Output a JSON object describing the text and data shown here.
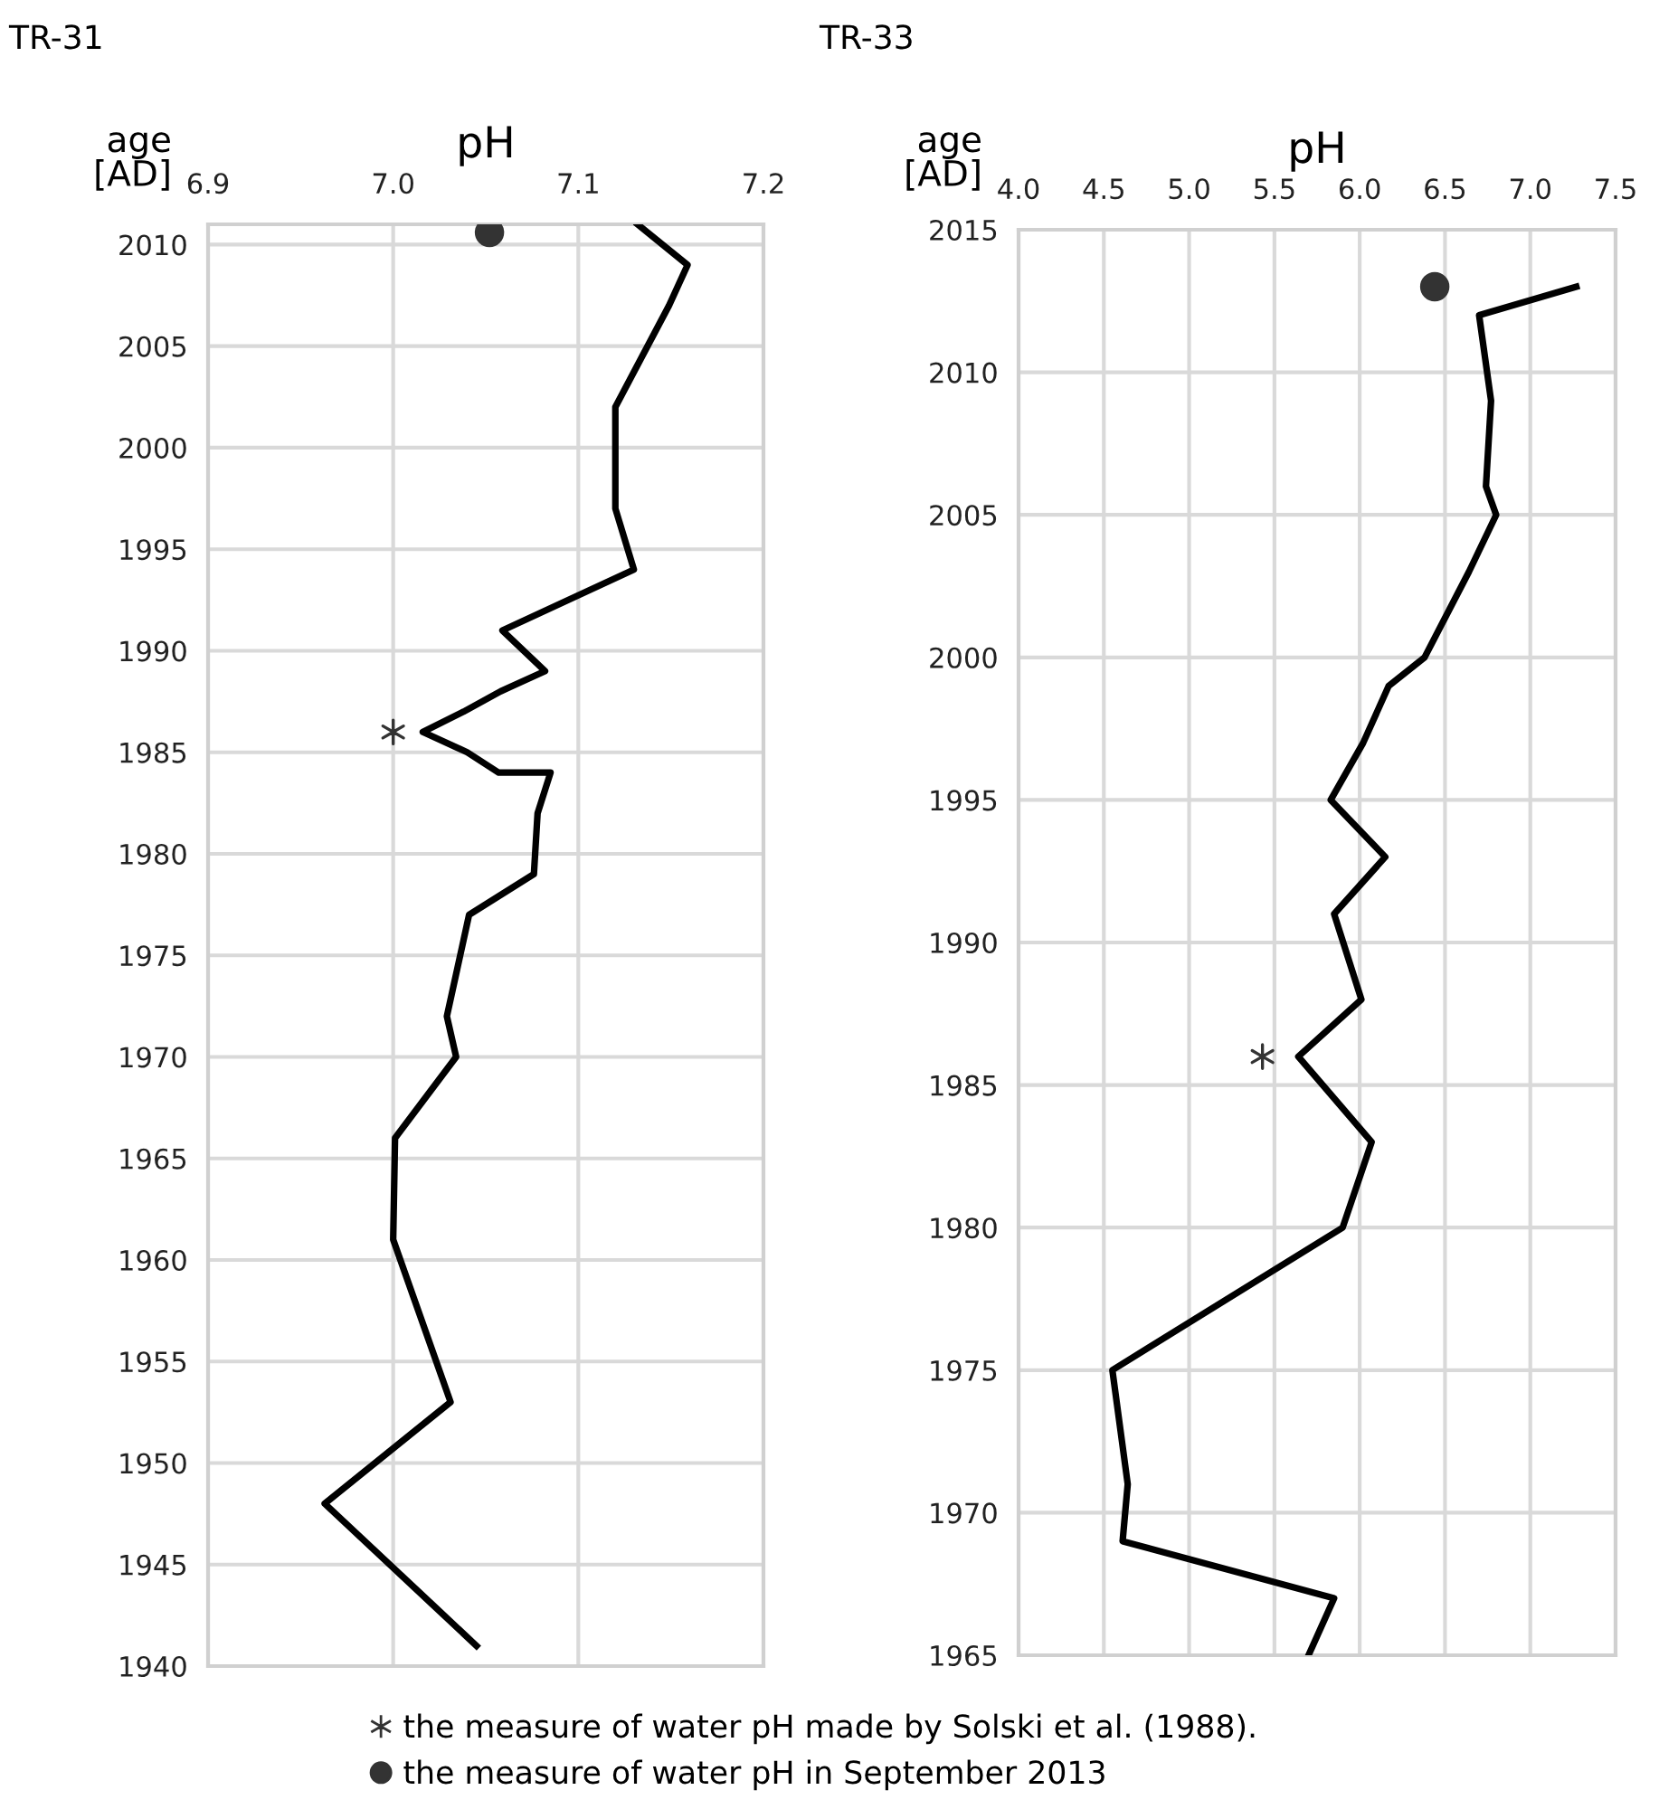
{
  "chart_data": [
    {
      "type": "line",
      "title": "TR-31",
      "xlabel": "pH",
      "ylabel": "age\n[AD]",
      "xlim": [
        6.9,
        7.2
      ],
      "xticks": [
        6.9,
        {
          "value": 7,
          "label": "7.0"
        },
        7.1,
        7.2
      ],
      "ylim": [
        1940,
        2011
      ],
      "yticks": [
        1940,
        1945,
        1950,
        1955,
        1960,
        1965,
        1970,
        1975,
        1980,
        1985,
        1990,
        1995,
        2000,
        2005,
        2010
      ],
      "grid": true,
      "legend": "bottom",
      "series": [
        {
          "type": "line",
          "color": "#000000",
          "marker": "none",
          "x": [
            7.132,
            7.159,
            7.149,
            7.12,
            7.12,
            7.13,
            7.059,
            7.082,
            7.058,
            7.038,
            7.016,
            7.04,
            7.057,
            7.085,
            7.078,
            7.076,
            7.041,
            7.029,
            7.034,
            7.001,
            7.0,
            7.031,
            6.963,
            7.045
          ],
          "values": [
            2011,
            2009,
            2007,
            2002,
            1997,
            1994,
            1991,
            1989,
            1988,
            1987,
            1986,
            1985,
            1984,
            1984,
            1982,
            1979,
            1977,
            1972,
            1970,
            1966,
            1961,
            1953,
            1948,
            1941
          ]
        },
        {
          "type": "scatter",
          "name": "the measure of water pH made by Solski et al. (1988).",
          "color": "#333333",
          "marker": "cross",
          "x": [
            7.0
          ],
          "values": [
            1986
          ]
        },
        {
          "type": "scatter",
          "name": "the measure of water pH in September 2013",
          "color": "#333333",
          "marker": "circle",
          "x": [
            7.052
          ],
          "values": [
            2010.6
          ]
        }
      ]
    },
    {
      "type": "line",
      "title": "TR-33",
      "xlabel": "pH",
      "ylabel": "age\n[AD]",
      "xlim": [
        4,
        7.5
      ],
      "xticks": [
        {
          "value": 4,
          "label": "4.0"
        },
        4.5,
        {
          "value": 5,
          "label": "5.0"
        },
        5.5,
        {
          "value": 6,
          "label": "6.0"
        },
        6.5,
        {
          "value": 7,
          "label": "7.0"
        },
        7.5
      ],
      "ylim": [
        1965,
        2015
      ],
      "yticks": [
        1965,
        1970,
        1975,
        1980,
        1985,
        1990,
        1995,
        2000,
        2005,
        2010,
        2015
      ],
      "grid": true,
      "series": [
        {
          "type": "line",
          "color": "#000000",
          "marker": "none",
          "x": [
            7.27,
            6.7,
            6.77,
            6.74,
            6.8,
            6.64,
            6.38,
            6.17,
            6.02,
            5.83,
            6.15,
            5.85,
            6.01,
            5.64,
            6.07,
            5.9,
            4.55,
            4.64,
            4.61,
            5.85,
            5.7
          ],
          "values": [
            2013,
            2012,
            2009,
            2006,
            2005,
            2003,
            2000,
            1999,
            1997,
            1995,
            1993,
            1991,
            1988,
            1986,
            1983,
            1980,
            1975,
            1971,
            1969,
            1967,
            1965
          ]
        },
        {
          "type": "scatter",
          "color": "#333333",
          "marker": "cross",
          "x": [
            5.43
          ],
          "values": [
            1986
          ]
        },
        {
          "type": "scatter",
          "color": "#333333",
          "marker": "circle",
          "x": [
            6.44
          ],
          "values": [
            2013
          ]
        }
      ]
    }
  ]
}
